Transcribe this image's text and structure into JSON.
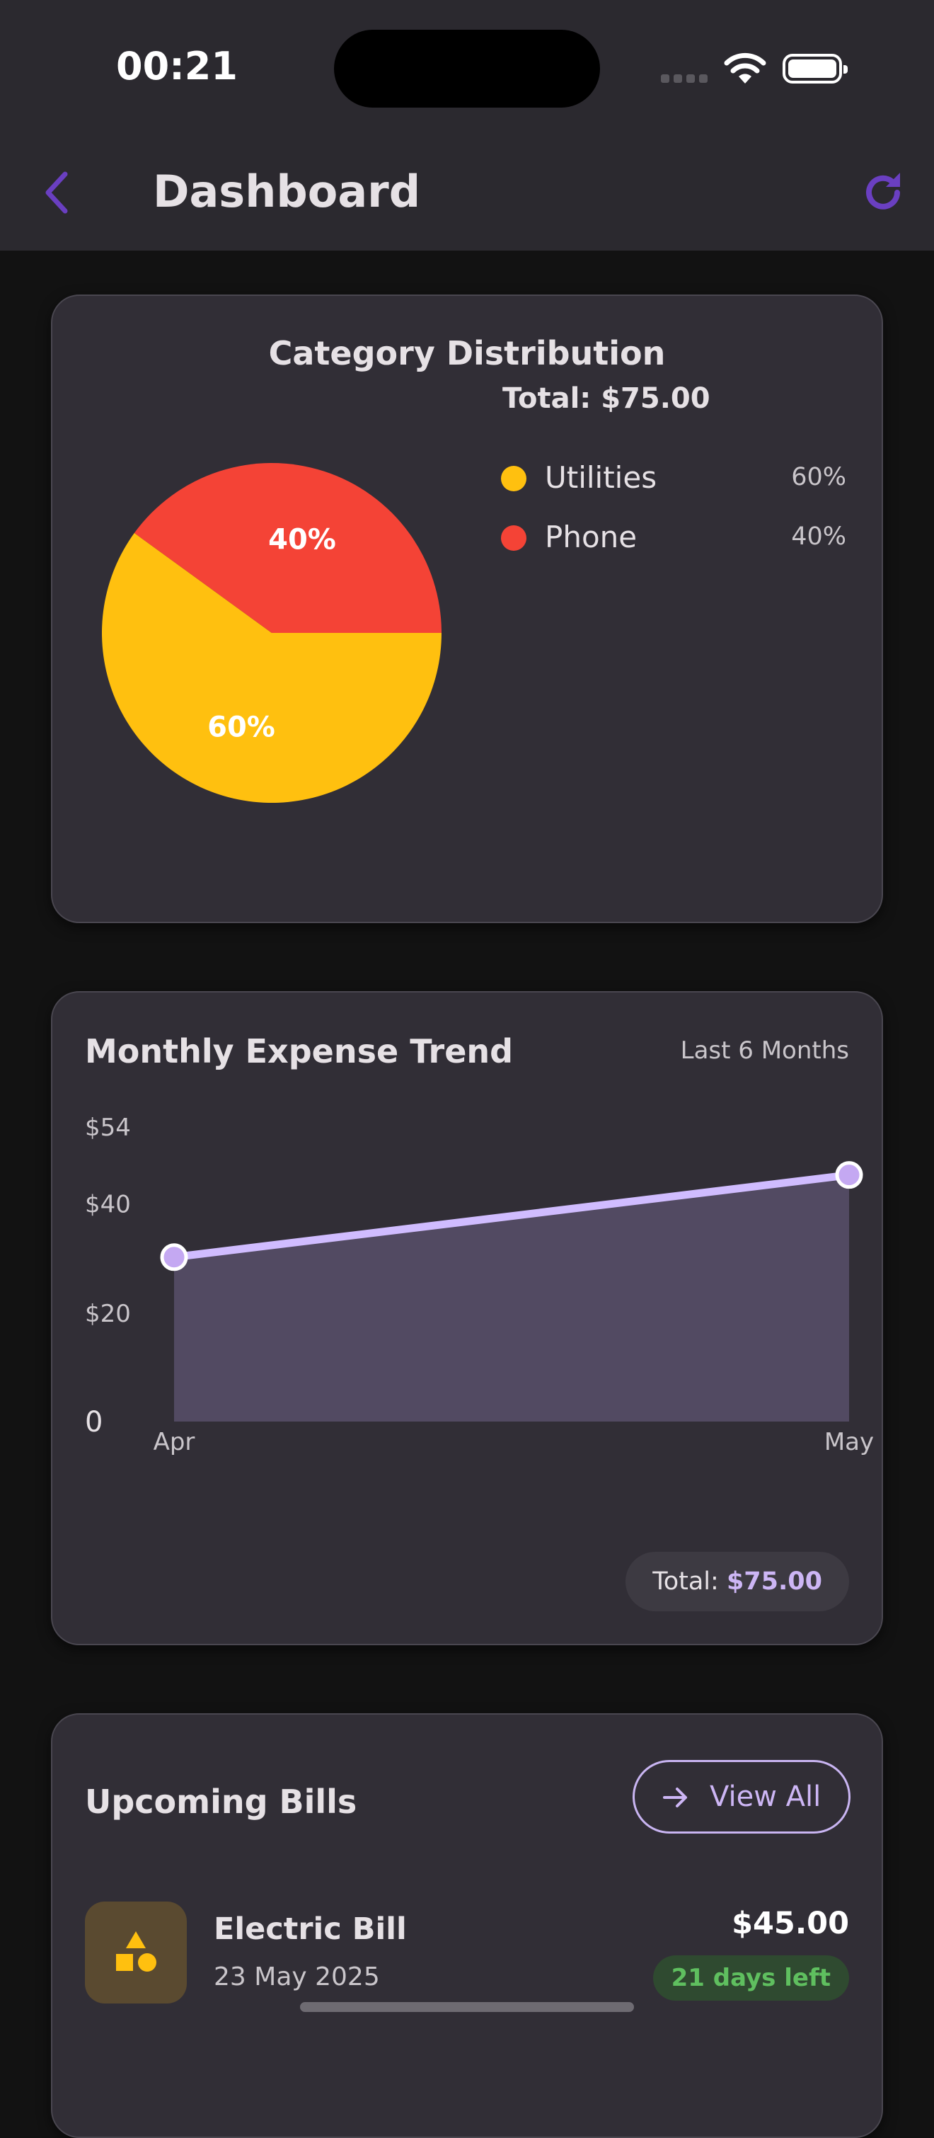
{
  "status_bar": {
    "time": "00:21",
    "icons": [
      "cellular-signal-icon",
      "wifi-icon",
      "battery-icon"
    ]
  },
  "app_bar": {
    "title": "Dashboard",
    "back_icon": "chevron-left-icon",
    "refresh_icon": "refresh-icon",
    "accent_color": "#6a3fc1"
  },
  "category_distribution": {
    "title": "Category Distribution",
    "total_label": "Total: $75.00",
    "legend": [
      {
        "name": "Utilities",
        "percent_label": "60%",
        "color": "#ffc00f"
      },
      {
        "name": "Phone",
        "percent_label": "40%",
        "color": "#f44336"
      }
    ]
  },
  "monthly_trend": {
    "title": "Monthly Expense Trend",
    "range_label": "Last 6 Months",
    "total_prefix": "Total: ",
    "total_value": "$75.00",
    "line_color": "#d0bcff"
  },
  "upcoming_bills": {
    "title": "Upcoming Bills",
    "view_all_label": "View All",
    "view_all_icon": "arrow-right-icon",
    "items": [
      {
        "name": "Electric Bill",
        "date": "23 May 2025",
        "amount": "$45.00",
        "badge": "21 days left",
        "icon": "category-shapes-icon"
      }
    ]
  },
  "chart_data": [
    {
      "type": "pie",
      "title": "Category Distribution",
      "categories": [
        "Utilities",
        "Phone"
      ],
      "values": [
        60,
        40
      ],
      "labels": [
        "60%",
        "40%"
      ],
      "colors": [
        "#ffc00f",
        "#f44336"
      ],
      "legend_placement": "right"
    },
    {
      "type": "area",
      "title": "Monthly Expense Trend",
      "x": [
        "Apr",
        "May"
      ],
      "series": [
        {
          "values": [
            30,
            45
          ]
        }
      ],
      "ylim": [
        0,
        54
      ],
      "y_ticks": [
        0,
        20,
        40,
        54
      ],
      "y_tick_labels": [
        "0",
        "$20",
        "$40",
        "$54"
      ],
      "grid": false
    }
  ]
}
